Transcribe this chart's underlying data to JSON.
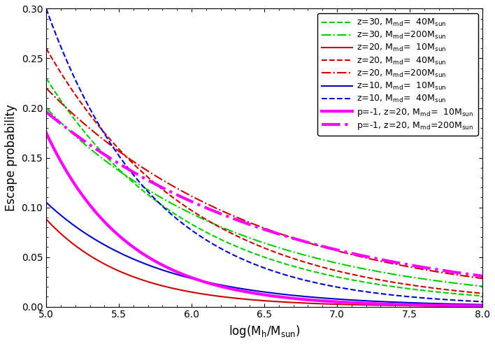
{
  "ylabel": "Escape probability",
  "xlim": [
    5,
    8
  ],
  "ylim": [
    0,
    0.3
  ],
  "xticks": [
    5,
    5.5,
    6,
    6.5,
    7,
    7.5,
    8
  ],
  "yticks": [
    0,
    0.05,
    0.1,
    0.15,
    0.2,
    0.25,
    0.3
  ],
  "curves": [
    {
      "label_key": "z30_40",
      "color": "#00cc00",
      "linestyle": "dashed",
      "linewidth": 1.5,
      "y_at_5": 0.23,
      "y_at_75": 0.018
    },
    {
      "label_key": "z30_200",
      "color": "#00cc00",
      "linestyle": "dashdot",
      "linewidth": 1.5,
      "y_at_5": 0.2,
      "y_at_75": 0.03
    },
    {
      "label_key": "z20_10",
      "color": "#cc0000",
      "linestyle": "solid",
      "linewidth": 1.5,
      "y_at_5": 0.088,
      "y_at_75": 0.001
    },
    {
      "label_key": "z20_40",
      "color": "#cc0000",
      "linestyle": "dashed",
      "linewidth": 1.5,
      "y_at_5": 0.26,
      "y_at_75": 0.022
    },
    {
      "label_key": "z20_200",
      "color": "#cc0000",
      "linestyle": "dashdot",
      "linewidth": 1.5,
      "y_at_5": 0.22,
      "y_at_75": 0.04
    },
    {
      "label_key": "z10_10",
      "color": "#0000cc",
      "linestyle": "solid",
      "linewidth": 1.5,
      "y_at_5": 0.105,
      "y_at_75": 0.004
    },
    {
      "label_key": "z10_40",
      "color": "#0000cc",
      "linestyle": "dashed",
      "linewidth": 1.5,
      "y_at_5": 0.3,
      "y_at_75": 0.01
    },
    {
      "label_key": "p1_z20_10",
      "color": "#ff00ff",
      "linestyle": "solid",
      "linewidth": 3.0,
      "y_at_5": 0.175,
      "y_at_75": 0.002
    },
    {
      "label_key": "p1_z20_200",
      "color": "#ff00ff",
      "linestyle": "dashdot",
      "linewidth": 3.0,
      "y_at_5": 0.196,
      "y_at_75": 0.042
    }
  ],
  "background_color": "#ffffff",
  "legend_fontsize": 9,
  "axis_fontsize": 12
}
